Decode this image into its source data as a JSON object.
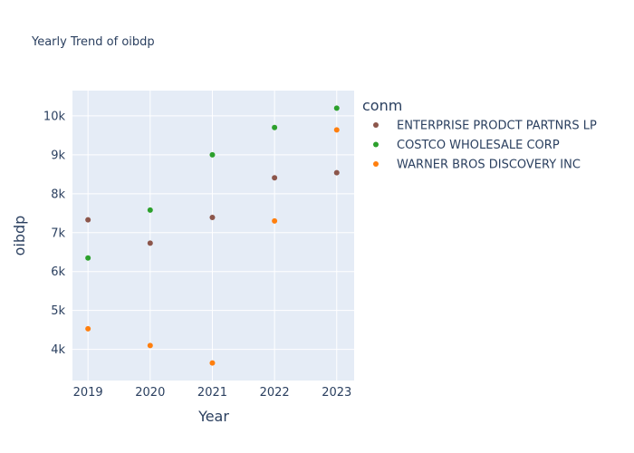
{
  "chart_data": {
    "type": "scatter",
    "title": "Yearly Trend of oibdp",
    "xlabel": "Year",
    "ylabel": "oibdp",
    "x": [
      2019,
      2020,
      2021,
      2022,
      2023
    ],
    "x_ticks": [
      "2019",
      "2020",
      "2021",
      "2022",
      "2023"
    ],
    "xlim": [
      2018.75,
      2023.28
    ],
    "ylim": [
      3200,
      10650
    ],
    "y_ticks": [
      {
        "value": 4000,
        "label": "4k"
      },
      {
        "value": 5000,
        "label": "5k"
      },
      {
        "value": 6000,
        "label": "6k"
      },
      {
        "value": 7000,
        "label": "7k"
      },
      {
        "value": 8000,
        "label": "8k"
      },
      {
        "value": 9000,
        "label": "9k"
      },
      {
        "value": 10000,
        "label": "10k"
      }
    ],
    "legend_title": "conm",
    "legend_position": "right",
    "grid": true,
    "background_color": "#e5ecf6",
    "series": [
      {
        "name": "ENTERPRISE PRODCT PARTNRS LP",
        "color": "#8c564b",
        "values": [
          7330,
          6730,
          7390,
          8410,
          8540
        ]
      },
      {
        "name": "COSTCO WHOLESALE CORP",
        "color": "#2ca02c",
        "values": [
          6350,
          7580,
          9000,
          9700,
          10200
        ]
      },
      {
        "name": "WARNER BROS DISCOVERY INC",
        "color": "#ff7f0e",
        "values": [
          4530,
          4100,
          3650,
          7300,
          9640
        ]
      }
    ]
  }
}
